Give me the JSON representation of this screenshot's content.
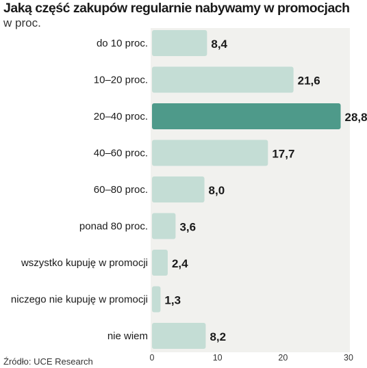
{
  "chart_data": {
    "type": "bar",
    "orientation": "horizontal",
    "title": "Jaką część zakupów regularnie nabywamy w promocjach",
    "subtitle": "w proc.",
    "categories": [
      "do 10 proc.",
      "10–20 proc.",
      "20–40 proc.",
      "40–60 proc.",
      "60–80 proc.",
      "ponad 80 proc.",
      "wszystko kupuję w promocji",
      "niczego nie kupuję w promocji",
      "nie wiem"
    ],
    "values": [
      8.4,
      21.6,
      28.8,
      17.7,
      8.0,
      3.6,
      2.4,
      1.3,
      8.2
    ],
    "value_labels": [
      "8,4",
      "21,6",
      "28,8",
      "17,7",
      "8,0",
      "3,6",
      "2,4",
      "1,3",
      "8,2"
    ],
    "highlight_index": 2,
    "xlim": [
      0,
      30
    ],
    "xticks": [
      0,
      10,
      20,
      30
    ],
    "grid": false,
    "source": "Źródło: UCE Research",
    "colors": {
      "bar": "#c4ddd5",
      "bar_highlight": "#4e9a8a",
      "panel": "#f1f1ee"
    }
  }
}
